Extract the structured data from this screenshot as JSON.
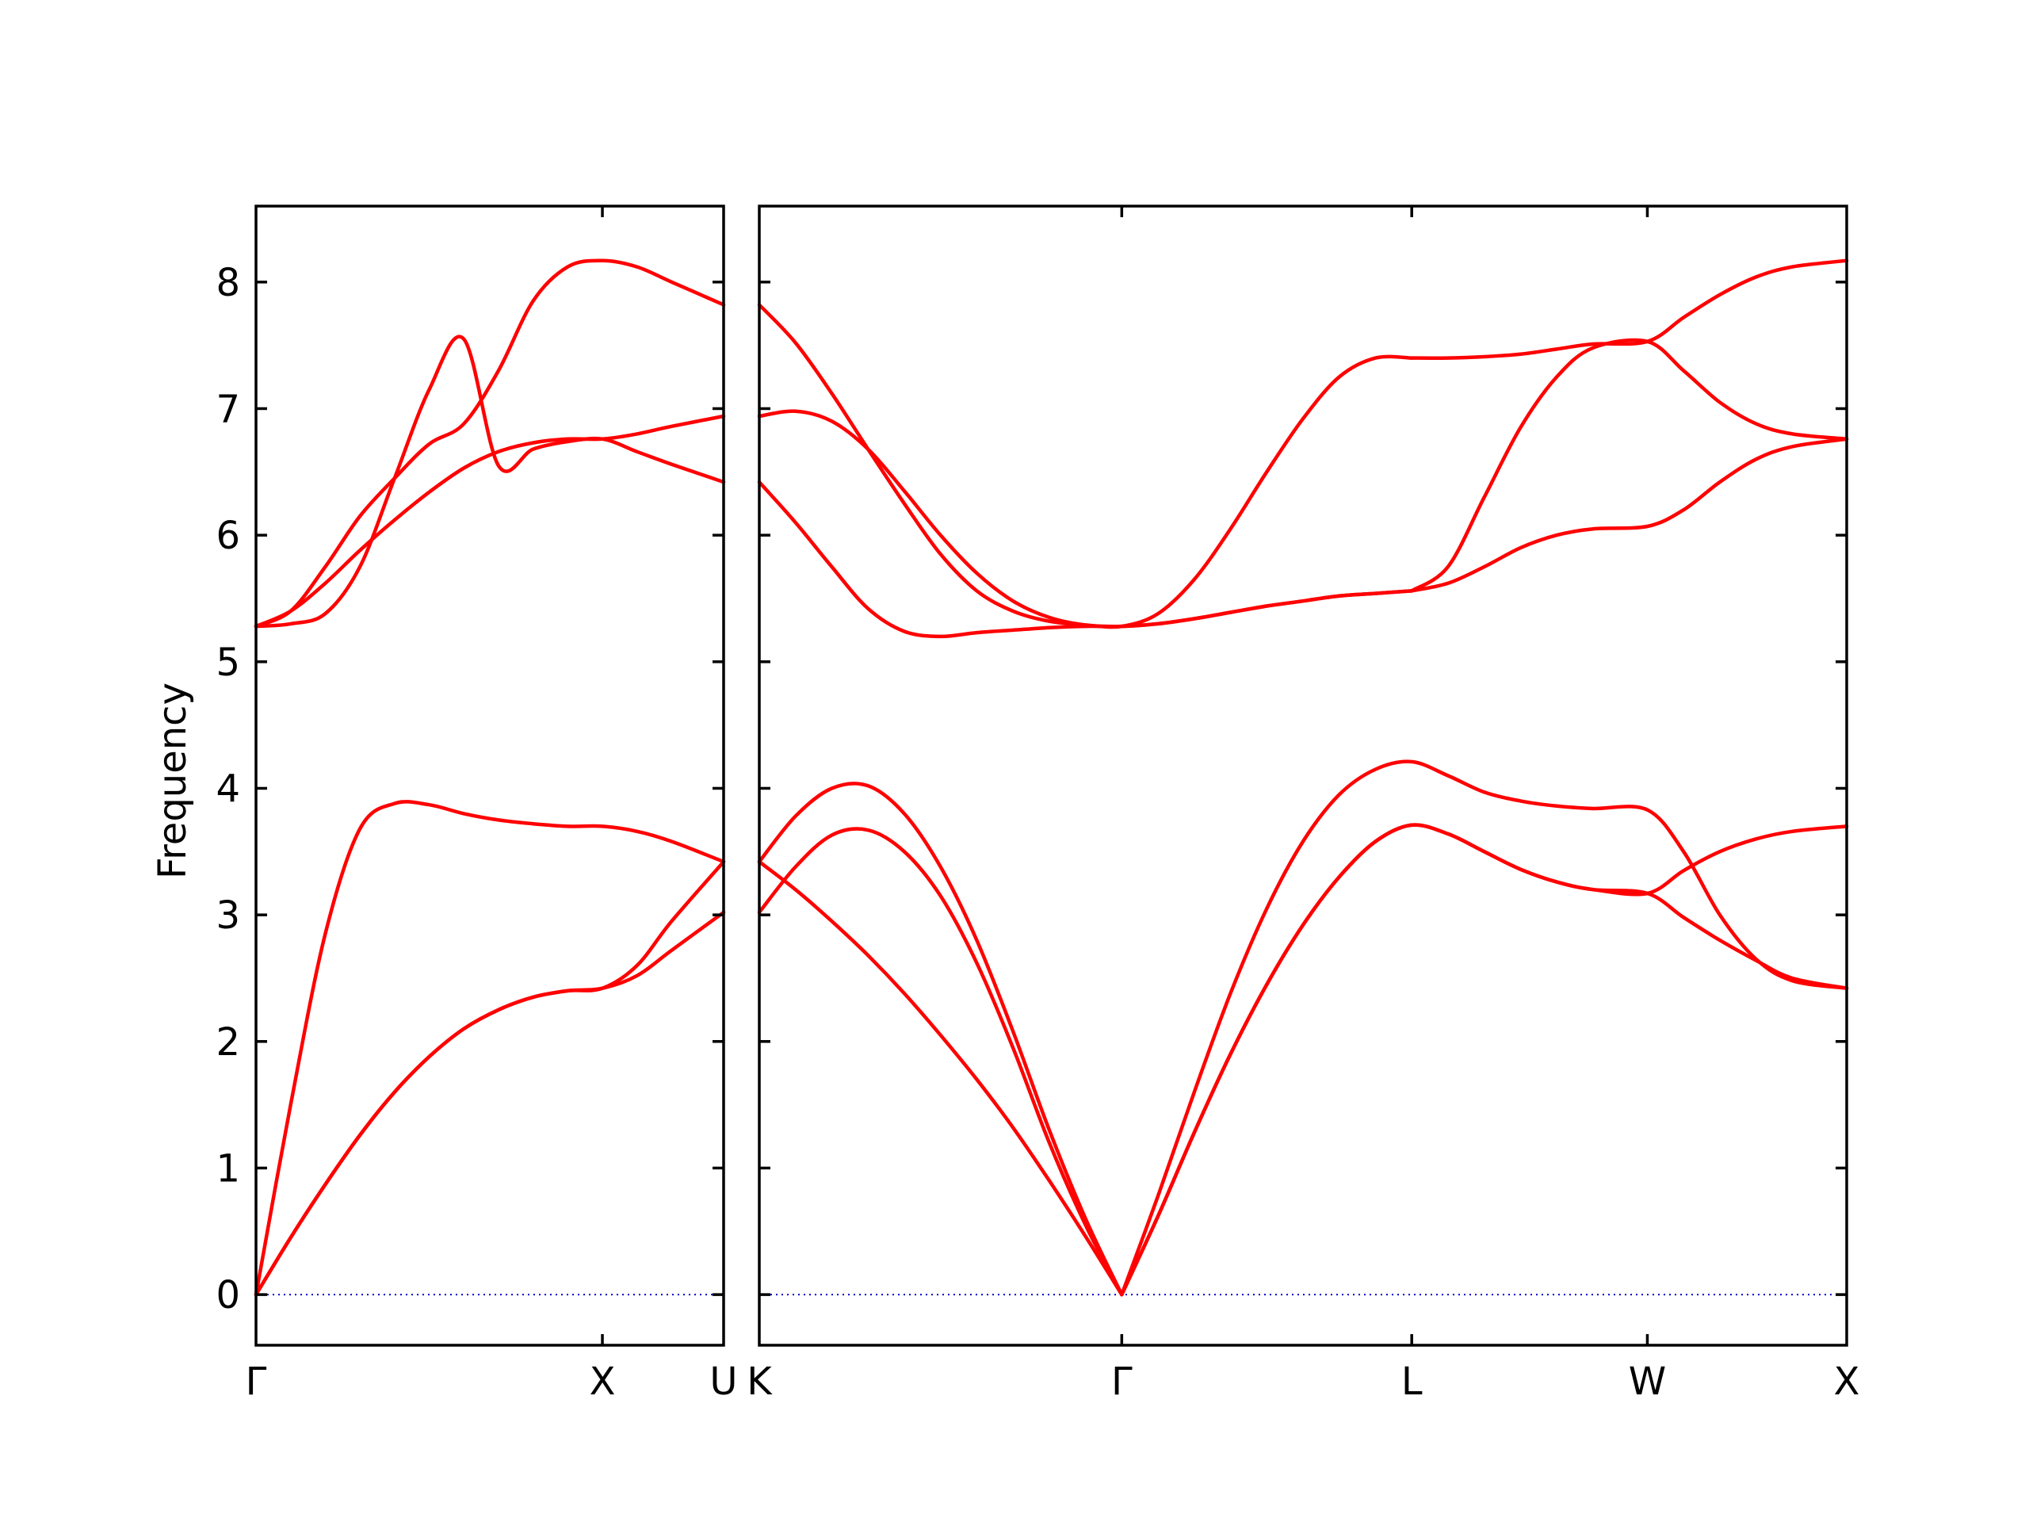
{
  "chart_data": {
    "type": "line",
    "ylabel": "Frequency",
    "ylim": [
      -0.4,
      8.6
    ],
    "yticks": [
      0,
      1,
      2,
      3,
      4,
      5,
      6,
      7,
      8
    ],
    "grid": false,
    "band_color": "#ff0000",
    "zero_line_color": "#0000cc",
    "panels": [
      {
        "id": "left",
        "xlim": [
          0,
          1.35
        ],
        "labels": [
          {
            "x": 0,
            "text": "Γ"
          },
          {
            "x": 1.0,
            "text": "X"
          },
          {
            "x": 1.35,
            "text": "U"
          }
        ],
        "series": [
          {
            "x": [
              0,
              0.1,
              0.2,
              0.3,
              0.4,
              0.5,
              0.6,
              0.7,
              0.8,
              0.9,
              1.0,
              1.1,
              1.2,
              1.35
            ],
            "y": [
              0,
              0.45,
              0.87,
              1.26,
              1.6,
              1.88,
              2.1,
              2.25,
              2.35,
              2.4,
              2.42,
              2.6,
              2.95,
              3.42
            ]
          },
          {
            "x": [
              0,
              0.1,
              0.2,
              0.3,
              0.4,
              0.5,
              0.6,
              0.7,
              0.8,
              0.9,
              1.0,
              1.1,
              1.2,
              1.35
            ],
            "y": [
              0,
              0.45,
              0.87,
              1.26,
              1.6,
              1.88,
              2.1,
              2.25,
              2.35,
              2.4,
              2.42,
              2.52,
              2.72,
              3.02
            ]
          },
          {
            "x": [
              0,
              0.1,
              0.2,
              0.3,
              0.4,
              0.5,
              0.6,
              0.7,
              0.8,
              0.9,
              1.0,
              1.1,
              1.2,
              1.35
            ],
            "y": [
              0,
              1.5,
              2.85,
              3.68,
              3.88,
              3.87,
              3.8,
              3.75,
              3.72,
              3.7,
              3.7,
              3.66,
              3.58,
              3.42
            ]
          },
          {
            "x": [
              0,
              0.1,
              0.2,
              0.3,
              0.4,
              0.5,
              0.6,
              0.7,
              0.8,
              0.9,
              1.0,
              1.1,
              1.2,
              1.35
            ],
            "y": [
              5.28,
              5.4,
              5.75,
              6.15,
              6.45,
              6.72,
              6.88,
              7.3,
              7.85,
              8.12,
              8.17,
              8.12,
              8.0,
              7.82
            ]
          },
          {
            "x": [
              0,
              0.1,
              0.2,
              0.3,
              0.4,
              0.5,
              0.6,
              0.7,
              0.8,
              0.9,
              1.0,
              1.1,
              1.2,
              1.35
            ],
            "y": [
              5.28,
              5.3,
              5.38,
              5.75,
              6.45,
              7.15,
              7.55,
              6.55,
              6.68,
              6.74,
              6.76,
              6.66,
              6.56,
              6.42
            ]
          },
          {
            "x": [
              0,
              0.1,
              0.2,
              0.3,
              0.4,
              0.5,
              0.6,
              0.7,
              0.8,
              0.9,
              1.0,
              1.1,
              1.2,
              1.35
            ],
            "y": [
              5.28,
              5.4,
              5.62,
              5.88,
              6.12,
              6.34,
              6.53,
              6.66,
              6.73,
              6.76,
              6.76,
              6.8,
              6.86,
              6.94
            ]
          }
        ]
      },
      {
        "id": "right",
        "xlim": [
          0,
          3.0
        ],
        "labels": [
          {
            "x": 0,
            "text": "K"
          },
          {
            "x": 1.0,
            "text": "Γ"
          },
          {
            "x": 1.8,
            "text": "L"
          },
          {
            "x": 2.45,
            "text": "W"
          },
          {
            "x": 3.0,
            "text": "X"
          }
        ],
        "series": [
          {
            "x": [
              0,
              0.1,
              0.2,
              0.3,
              0.4,
              0.5,
              0.6,
              0.7,
              0.8,
              0.9,
              1.0
            ],
            "y": [
              3.42,
              3.2,
              2.95,
              2.68,
              2.38,
              2.05,
              1.7,
              1.32,
              0.9,
              0.46,
              0
            ]
          },
          {
            "x": [
              0,
              0.1,
              0.2,
              0.3,
              0.4,
              0.5,
              0.6,
              0.7,
              0.8,
              0.9,
              1.0
            ],
            "y": [
              3.02,
              3.38,
              3.63,
              3.67,
              3.5,
              3.15,
              2.62,
              1.95,
              1.2,
              0.55,
              0
            ]
          },
          {
            "x": [
              0,
              0.1,
              0.2,
              0.3,
              0.4,
              0.5,
              0.6,
              0.7,
              0.8,
              0.9,
              1.0
            ],
            "y": [
              3.42,
              3.78,
              4.0,
              4.02,
              3.8,
              3.38,
              2.8,
              2.08,
              1.3,
              0.6,
              0
            ]
          },
          {
            "x": [
              1.0,
              1.1,
              1.2,
              1.3,
              1.4,
              1.5,
              1.6,
              1.7,
              1.8,
              1.9,
              2.0,
              2.1,
              2.2,
              2.3,
              2.45,
              2.55,
              2.65,
              2.75,
              2.85,
              3.0
            ],
            "y": [
              0,
              0.62,
              1.28,
              1.9,
              2.45,
              2.92,
              3.3,
              3.58,
              3.71,
              3.64,
              3.5,
              3.36,
              3.26,
              3.2,
              3.17,
              3.35,
              3.5,
              3.6,
              3.66,
              3.7
            ]
          },
          {
            "x": [
              1.0,
              1.1,
              1.2,
              1.3,
              1.4,
              1.5,
              1.6,
              1.7,
              1.8,
              1.9,
              2.0,
              2.1,
              2.2,
              2.3,
              2.45,
              2.55,
              2.65,
              2.75,
              2.85,
              3.0
            ],
            "y": [
              0,
              0.62,
              1.28,
              1.9,
              2.45,
              2.92,
              3.3,
              3.58,
              3.71,
              3.64,
              3.5,
              3.36,
              3.26,
              3.2,
              3.17,
              2.98,
              2.8,
              2.64,
              2.5,
              2.42
            ]
          },
          {
            "x": [
              1.0,
              1.1,
              1.2,
              1.3,
              1.4,
              1.5,
              1.6,
              1.7,
              1.8,
              1.9,
              2.0,
              2.1,
              2.2,
              2.3,
              2.45,
              2.55,
              2.65,
              2.75,
              2.85,
              3.0
            ],
            "y": [
              0,
              0.78,
              1.6,
              2.38,
              3.05,
              3.58,
              3.95,
              4.15,
              4.21,
              4.1,
              3.97,
              3.9,
              3.86,
              3.84,
              3.83,
              3.5,
              3.0,
              2.65,
              2.48,
              2.42
            ]
          },
          {
            "x": [
              0,
              0.1,
              0.2,
              0.3,
              0.4,
              0.5,
              0.6,
              0.7,
              0.8,
              0.9,
              1.0,
              1.1,
              1.2,
              1.3,
              1.4,
              1.5,
              1.6,
              1.7,
              1.8
            ],
            "y": [
              6.42,
              6.1,
              5.75,
              5.42,
              5.24,
              5.2,
              5.23,
              5.25,
              5.27,
              5.28,
              5.28,
              5.3,
              5.34,
              5.39,
              5.44,
              5.48,
              5.52,
              5.54,
              5.56
            ]
          },
          {
            "x": [
              0,
              0.1,
              0.2,
              0.3,
              0.4,
              0.5,
              0.6,
              0.7,
              0.8,
              0.9,
              1.0,
              1.1,
              1.2,
              1.3,
              1.4,
              1.5,
              1.6,
              1.7,
              1.8
            ],
            "y": [
              6.94,
              6.98,
              6.9,
              6.68,
              6.35,
              6.0,
              5.7,
              5.48,
              5.35,
              5.29,
              5.28,
              5.3,
              5.34,
              5.39,
              5.44,
              5.48,
              5.52,
              5.54,
              5.56
            ]
          },
          {
            "x": [
              0,
              0.1,
              0.2,
              0.3,
              0.4,
              0.5,
              0.6,
              0.7,
              0.8,
              0.9,
              1.0,
              1.1,
              1.2,
              1.3,
              1.4,
              1.5,
              1.6,
              1.7,
              1.8
            ],
            "y": [
              7.82,
              7.52,
              7.12,
              6.68,
              6.25,
              5.85,
              5.56,
              5.4,
              5.32,
              5.29,
              5.28,
              5.38,
              5.65,
              6.05,
              6.5,
              6.92,
              7.25,
              7.4,
              7.4
            ]
          },
          {
            "x": [
              1.8,
              1.9,
              2.0,
              2.1,
              2.2,
              2.3,
              2.45,
              2.55,
              2.65,
              2.75,
              2.85,
              3.0
            ],
            "y": [
              5.56,
              5.62,
              5.75,
              5.9,
              6.0,
              6.05,
              6.07,
              6.2,
              6.42,
              6.6,
              6.7,
              6.76
            ]
          },
          {
            "x": [
              1.8,
              1.9,
              2.0,
              2.1,
              2.2,
              2.3,
              2.45,
              2.55,
              2.65,
              2.75,
              2.85,
              3.0
            ],
            "y": [
              5.56,
              5.75,
              6.3,
              6.85,
              7.25,
              7.48,
              7.53,
              7.3,
              7.05,
              6.88,
              6.8,
              6.76
            ]
          },
          {
            "x": [
              1.8,
              1.9,
              2.0,
              2.1,
              2.2,
              2.3,
              2.45,
              2.55,
              2.65,
              2.75,
              2.85,
              3.0
            ],
            "y": [
              7.4,
              7.4,
              7.41,
              7.43,
              7.47,
              7.51,
              7.53,
              7.72,
              7.9,
              8.04,
              8.12,
              8.17
            ]
          }
        ]
      }
    ]
  }
}
